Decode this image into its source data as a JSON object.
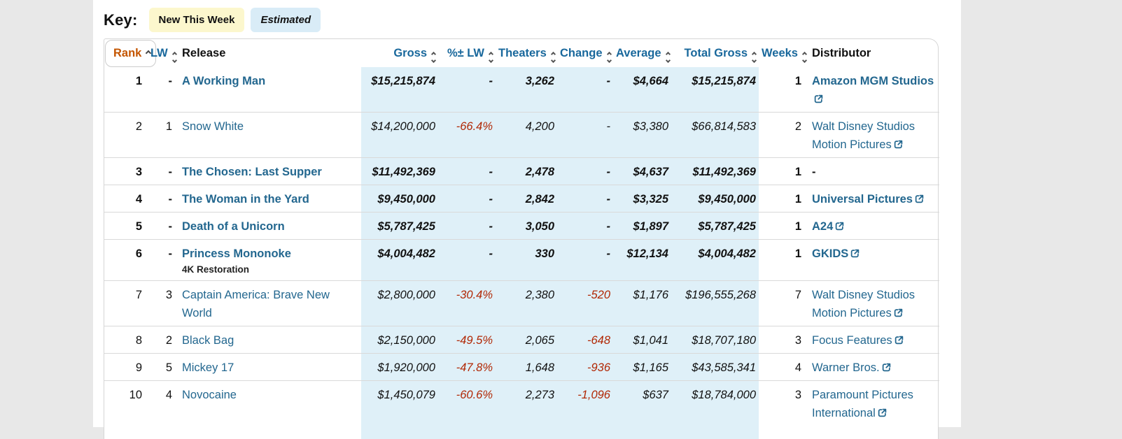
{
  "colors": {
    "page_background": "#e8e8e8",
    "panel_background": "#ffffff",
    "estimated_background": "#dff0f8",
    "new_this_week_background": "#fcf7cd",
    "link": "#23678f",
    "sortable_header": "#19689c",
    "sorted_header": "#c45500",
    "negative": "#b12704",
    "row_divider": "#d9d9d9"
  },
  "key": {
    "label": "Key:",
    "badges": [
      {
        "id": "new-this-week",
        "label": "New This Week"
      },
      {
        "id": "estimated",
        "label": "Estimated"
      }
    ]
  },
  "table": {
    "columns": [
      {
        "key": "rank",
        "label": "Rank",
        "sortable": true,
        "sorted": "asc",
        "align": "right",
        "estimated": false
      },
      {
        "key": "lw",
        "label": "LW",
        "sortable": true,
        "align": "right",
        "estimated": false
      },
      {
        "key": "release",
        "label": "Release",
        "sortable": false,
        "align": "left",
        "estimated": false
      },
      {
        "key": "gross",
        "label": "Gross",
        "sortable": true,
        "align": "right",
        "estimated": true
      },
      {
        "key": "pct_lw",
        "label": "%± LW",
        "sortable": true,
        "align": "right",
        "estimated": true
      },
      {
        "key": "theaters",
        "label": "Theaters",
        "sortable": true,
        "align": "right",
        "estimated": true
      },
      {
        "key": "change",
        "label": "Change",
        "sortable": true,
        "align": "right",
        "estimated": true
      },
      {
        "key": "average",
        "label": "Average",
        "sortable": true,
        "align": "right",
        "estimated": true
      },
      {
        "key": "total_gross",
        "label": "Total Gross",
        "sortable": true,
        "align": "right",
        "estimated": true
      },
      {
        "key": "weeks",
        "label": "Weeks",
        "sortable": true,
        "align": "right",
        "estimated": false
      },
      {
        "key": "distributor",
        "label": "Distributor",
        "sortable": false,
        "align": "left",
        "estimated": false
      }
    ],
    "rows": [
      {
        "rank": "1",
        "lw": "-",
        "release": "A Working Man",
        "subtitle": "",
        "new": true,
        "gross": "$15,215,874",
        "pct_lw": "-",
        "theaters": "3,262",
        "change": "-",
        "average": "$4,664",
        "total_gross": "$15,215,874",
        "weeks": "1",
        "distributor": "Amazon MGM Studios",
        "dist_link": true
      },
      {
        "rank": "2",
        "lw": "1",
        "release": "Snow White",
        "subtitle": "",
        "new": false,
        "gross": "$14,200,000",
        "pct_lw": "-66.4%",
        "theaters": "4,200",
        "change": "-",
        "average": "$3,380",
        "total_gross": "$66,814,583",
        "weeks": "2",
        "distributor": "Walt Disney Studios Motion Pictures",
        "dist_link": true
      },
      {
        "rank": "3",
        "lw": "-",
        "release": "The Chosen: Last Supper",
        "subtitle": "",
        "new": true,
        "gross": "$11,492,369",
        "pct_lw": "-",
        "theaters": "2,478",
        "change": "-",
        "average": "$4,637",
        "total_gross": "$11,492,369",
        "weeks": "1",
        "distributor": "-",
        "dist_link": false
      },
      {
        "rank": "4",
        "lw": "-",
        "release": "The Woman in the Yard",
        "subtitle": "",
        "new": true,
        "gross": "$9,450,000",
        "pct_lw": "-",
        "theaters": "2,842",
        "change": "-",
        "average": "$3,325",
        "total_gross": "$9,450,000",
        "weeks": "1",
        "distributor": "Universal Pictures",
        "dist_link": true
      },
      {
        "rank": "5",
        "lw": "-",
        "release": "Death of a Unicorn",
        "subtitle": "",
        "new": true,
        "gross": "$5,787,425",
        "pct_lw": "-",
        "theaters": "3,050",
        "change": "-",
        "average": "$1,897",
        "total_gross": "$5,787,425",
        "weeks": "1",
        "distributor": "A24",
        "dist_link": true
      },
      {
        "rank": "6",
        "lw": "-",
        "release": "Princess Mononoke",
        "subtitle": "4K Restoration",
        "new": true,
        "gross": "$4,004,482",
        "pct_lw": "-",
        "theaters": "330",
        "change": "-",
        "average": "$12,134",
        "total_gross": "$4,004,482",
        "weeks": "1",
        "distributor": "GKIDS",
        "dist_link": true
      },
      {
        "rank": "7",
        "lw": "3",
        "release": "Captain America: Brave New World",
        "subtitle": "",
        "new": false,
        "gross": "$2,800,000",
        "pct_lw": "-30.4%",
        "theaters": "2,380",
        "change": "-520",
        "average": "$1,176",
        "total_gross": "$196,555,268",
        "weeks": "7",
        "distributor": "Walt Disney Studios Motion Pictures",
        "dist_link": true
      },
      {
        "rank": "8",
        "lw": "2",
        "release": "Black Bag",
        "subtitle": "",
        "new": false,
        "gross": "$2,150,000",
        "pct_lw": "-49.5%",
        "theaters": "2,065",
        "change": "-648",
        "average": "$1,041",
        "total_gross": "$18,707,180",
        "weeks": "3",
        "distributor": "Focus Features",
        "dist_link": true
      },
      {
        "rank": "9",
        "lw": "5",
        "release": "Mickey 17",
        "subtitle": "",
        "new": false,
        "gross": "$1,920,000",
        "pct_lw": "-47.8%",
        "theaters": "1,648",
        "change": "-936",
        "average": "$1,165",
        "total_gross": "$43,585,341",
        "weeks": "4",
        "distributor": "Warner Bros.",
        "dist_link": true
      },
      {
        "rank": "10",
        "lw": "4",
        "release": "Novocaine",
        "subtitle": "",
        "new": false,
        "gross": "$1,450,079",
        "pct_lw": "-60.6%",
        "theaters": "2,273",
        "change": "-1,096",
        "average": "$637",
        "total_gross": "$18,784,000",
        "weeks": "3",
        "distributor": "Paramount Pictures International",
        "dist_link": true
      }
    ]
  }
}
